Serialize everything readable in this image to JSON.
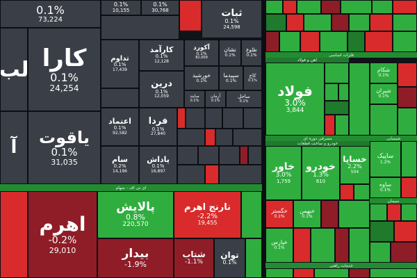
{
  "colors": {
    "gray": "#3a3f47",
    "green": "#2fae3f",
    "red": "#d92b2b",
    "dark_red": "#8e1d27"
  },
  "tiles": [
    {
      "id": "t0",
      "name": "",
      "pct": "0.1%",
      "vol": "73,224"
    },
    {
      "id": "t1",
      "name": "",
      "pct": "0.1%",
      "vol": "10,155"
    },
    {
      "id": "t2",
      "name": "",
      "pct": "0.1%",
      "vol": "30,768"
    },
    {
      "id": "t3",
      "name": "ثبات",
      "pct": "0.1%",
      "vol": "24,598"
    },
    {
      "id": "t4",
      "name": "کارا",
      "pct": "0.1%",
      "vol": "24,254"
    },
    {
      "id": "t5",
      "name": "یاقوت",
      "pct": "0.1%",
      "vol": "31,035"
    },
    {
      "id": "t6",
      "name": "کارآمد",
      "pct": "0.1%",
      "vol": "12,128"
    },
    {
      "id": "t7",
      "name": "آکورد",
      "pct": "0.1%",
      "vol": "82,009"
    },
    {
      "id": "t8",
      "name": "تداوم",
      "pct": "0.1%",
      "vol": "17,439"
    },
    {
      "id": "t9",
      "name": "درین",
      "pct": "0.1%",
      "vol": "12,059"
    },
    {
      "id": "t10",
      "name": "اعتماد",
      "pct": "0.1%",
      "vol": "92,582"
    },
    {
      "id": "t11",
      "name": "فردا",
      "pct": "0.1%",
      "vol": "27,840"
    },
    {
      "id": "t12",
      "name": "سام",
      "pct": "0.2%",
      "vol": "14,196"
    },
    {
      "id": "t13",
      "name": "پاداش",
      "pct": "0.1%",
      "vol": "16,897"
    },
    {
      "id": "t14",
      "name": "پالایش",
      "pct": "0.8%",
      "vol": "220,570"
    },
    {
      "id": "t15",
      "name": "نارنج اهرم",
      "pct": "-2.2%",
      "vol": "19,455"
    },
    {
      "id": "t16",
      "name": "اهرم",
      "pct": "-0.2%",
      "vol": "29,010"
    },
    {
      "id": "t17",
      "name": "بیدار",
      "pct": "-1.9%",
      "vol": ""
    },
    {
      "id": "t18",
      "name": "شتاب",
      "pct": "-1.1%",
      "vol": ""
    },
    {
      "id": "t19",
      "name": "توان",
      "pct": "0.1%",
      "vol": ""
    },
    {
      "id": "t20",
      "name": "فولاد",
      "pct": "3.0%",
      "vol": "3,844"
    },
    {
      "id": "t21",
      "name": "خاور",
      "pct": "3.0%",
      "vol": "1,759"
    },
    {
      "id": "t22",
      "name": "خودرو",
      "pct": "1.3%",
      "vol": "610"
    },
    {
      "id": "t23",
      "name": "خساپا",
      "pct": "2.2%",
      "vol": "504"
    }
  ],
  "small_tiles": [
    {
      "id": "s1",
      "name": "طلوع",
      "pct": "0.1%"
    },
    {
      "id": "s2",
      "name": "نشان",
      "pct": "0.1%"
    },
    {
      "id": "s3",
      "name": "خورشید",
      "pct": "0.1%"
    },
    {
      "id": "s4",
      "name": "سپیدما",
      "pct": "0.1%"
    },
    {
      "id": "s5",
      "name": "کاج",
      "pct": "0.1%"
    },
    {
      "id": "s6",
      "name": "ساحل",
      "pct": "0.1%"
    },
    {
      "id": "s7",
      "name": "صایند",
      "pct": "0.1%"
    },
    {
      "id": "s8",
      "name": "آرمان",
      "pct": "0.1%"
    },
    {
      "id": "s9",
      "name": "شکام",
      "pct": "0.1%"
    },
    {
      "id": "s10",
      "name": "ساپیک",
      "pct": "1.2%"
    },
    {
      "id": "s11",
      "name": "ساوه",
      "pct": "0.1%"
    },
    {
      "id": "s12",
      "name": "شیران",
      "pct": "0.1%"
    },
    {
      "id": "s13",
      "name": "خگستر",
      "pct": "0.1%"
    },
    {
      "id": "s14",
      "name": "خبهمن",
      "pct": "0.1%"
    },
    {
      "id": "s15",
      "name": "خپارس",
      "pct": "0.1%"
    }
  ],
  "bands": {
    "etf": "ای تی اف - سهام",
    "basic_metals": "فلزات اساسی",
    "metal_subs": "آهن و فولاد",
    "auto": "خودرو و ساخت قطعات",
    "auto_subs": "مصرفی دوره ای",
    "chem": "شیمیایی",
    "cement": "سیمان",
    "services": "خدمات راهنی"
  }
}
